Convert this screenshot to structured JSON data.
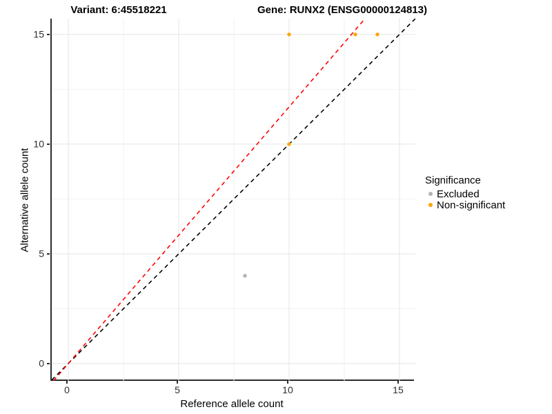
{
  "title": {
    "variant": "Variant: 6:45518221",
    "gene": "Gene: RUNX2 (ENSG00000124813)"
  },
  "axes": {
    "x_label": "Reference allele count",
    "y_label": "Alternative allele count",
    "x_tick_labels": [
      "0",
      "5",
      "10",
      "15"
    ],
    "y_tick_labels": [
      "0",
      "5",
      "10",
      "15"
    ]
  },
  "legend": {
    "title": "Significance",
    "items": [
      {
        "label": "Excluded",
        "color": "#b3b3b3"
      },
      {
        "label": "Non-significant",
        "color": "#ffa500"
      }
    ]
  },
  "colors": {
    "background": "#ffffff",
    "grid_major": "#e5e5e5",
    "grid_minor": "#f2f2f2",
    "axis_line": "#2b2b2b",
    "identity_line": "#000000",
    "expected_line": "#ff0000",
    "excluded_point": "#b3b3b3",
    "non_significant_point": "#ffa500"
  },
  "chart_data": {
    "type": "scatter",
    "title": "Variant: 6:45518221 | Gene: RUNX2 (ENSG00000124813)",
    "xlabel": "Reference allele count",
    "ylabel": "Alternative allele count",
    "xlim": [
      -0.75,
      15.72
    ],
    "ylim": [
      -0.79,
      15.72
    ],
    "x_major_ticks": [
      0,
      5,
      10,
      15
    ],
    "y_major_ticks": [
      0,
      5,
      10,
      15
    ],
    "x_minor_ticks": [
      2.5,
      7.5,
      12.5
    ],
    "y_minor_ticks": [
      2.5,
      7.5,
      12.5
    ],
    "grid": true,
    "legend_position": "right",
    "point_radius_px": 2.7,
    "series": [
      {
        "name": "Excluded",
        "color": "#b3b3b3",
        "points": [
          {
            "x": 8,
            "y": 4
          }
        ]
      },
      {
        "name": "Non-significant",
        "color": "#ffa500",
        "points": [
          {
            "x": 10,
            "y": 10
          },
          {
            "x": 10,
            "y": 15
          },
          {
            "x": 13,
            "y": 15
          },
          {
            "x": 14,
            "y": 15
          }
        ]
      }
    ],
    "lines": [
      {
        "name": "identity-line",
        "description": "y = x",
        "color": "#000000",
        "style": "dashed",
        "x1": -0.75,
        "y1": -0.75,
        "x2": 15.72,
        "y2": 15.72
      },
      {
        "name": "expected-ratio-line",
        "description": "through origin, slope 15/12.82",
        "color": "#ff0000",
        "style": "dashed",
        "x1": -0.672,
        "y1": -0.786,
        "x2": 13.44,
        "y2": 15.72
      }
    ]
  }
}
